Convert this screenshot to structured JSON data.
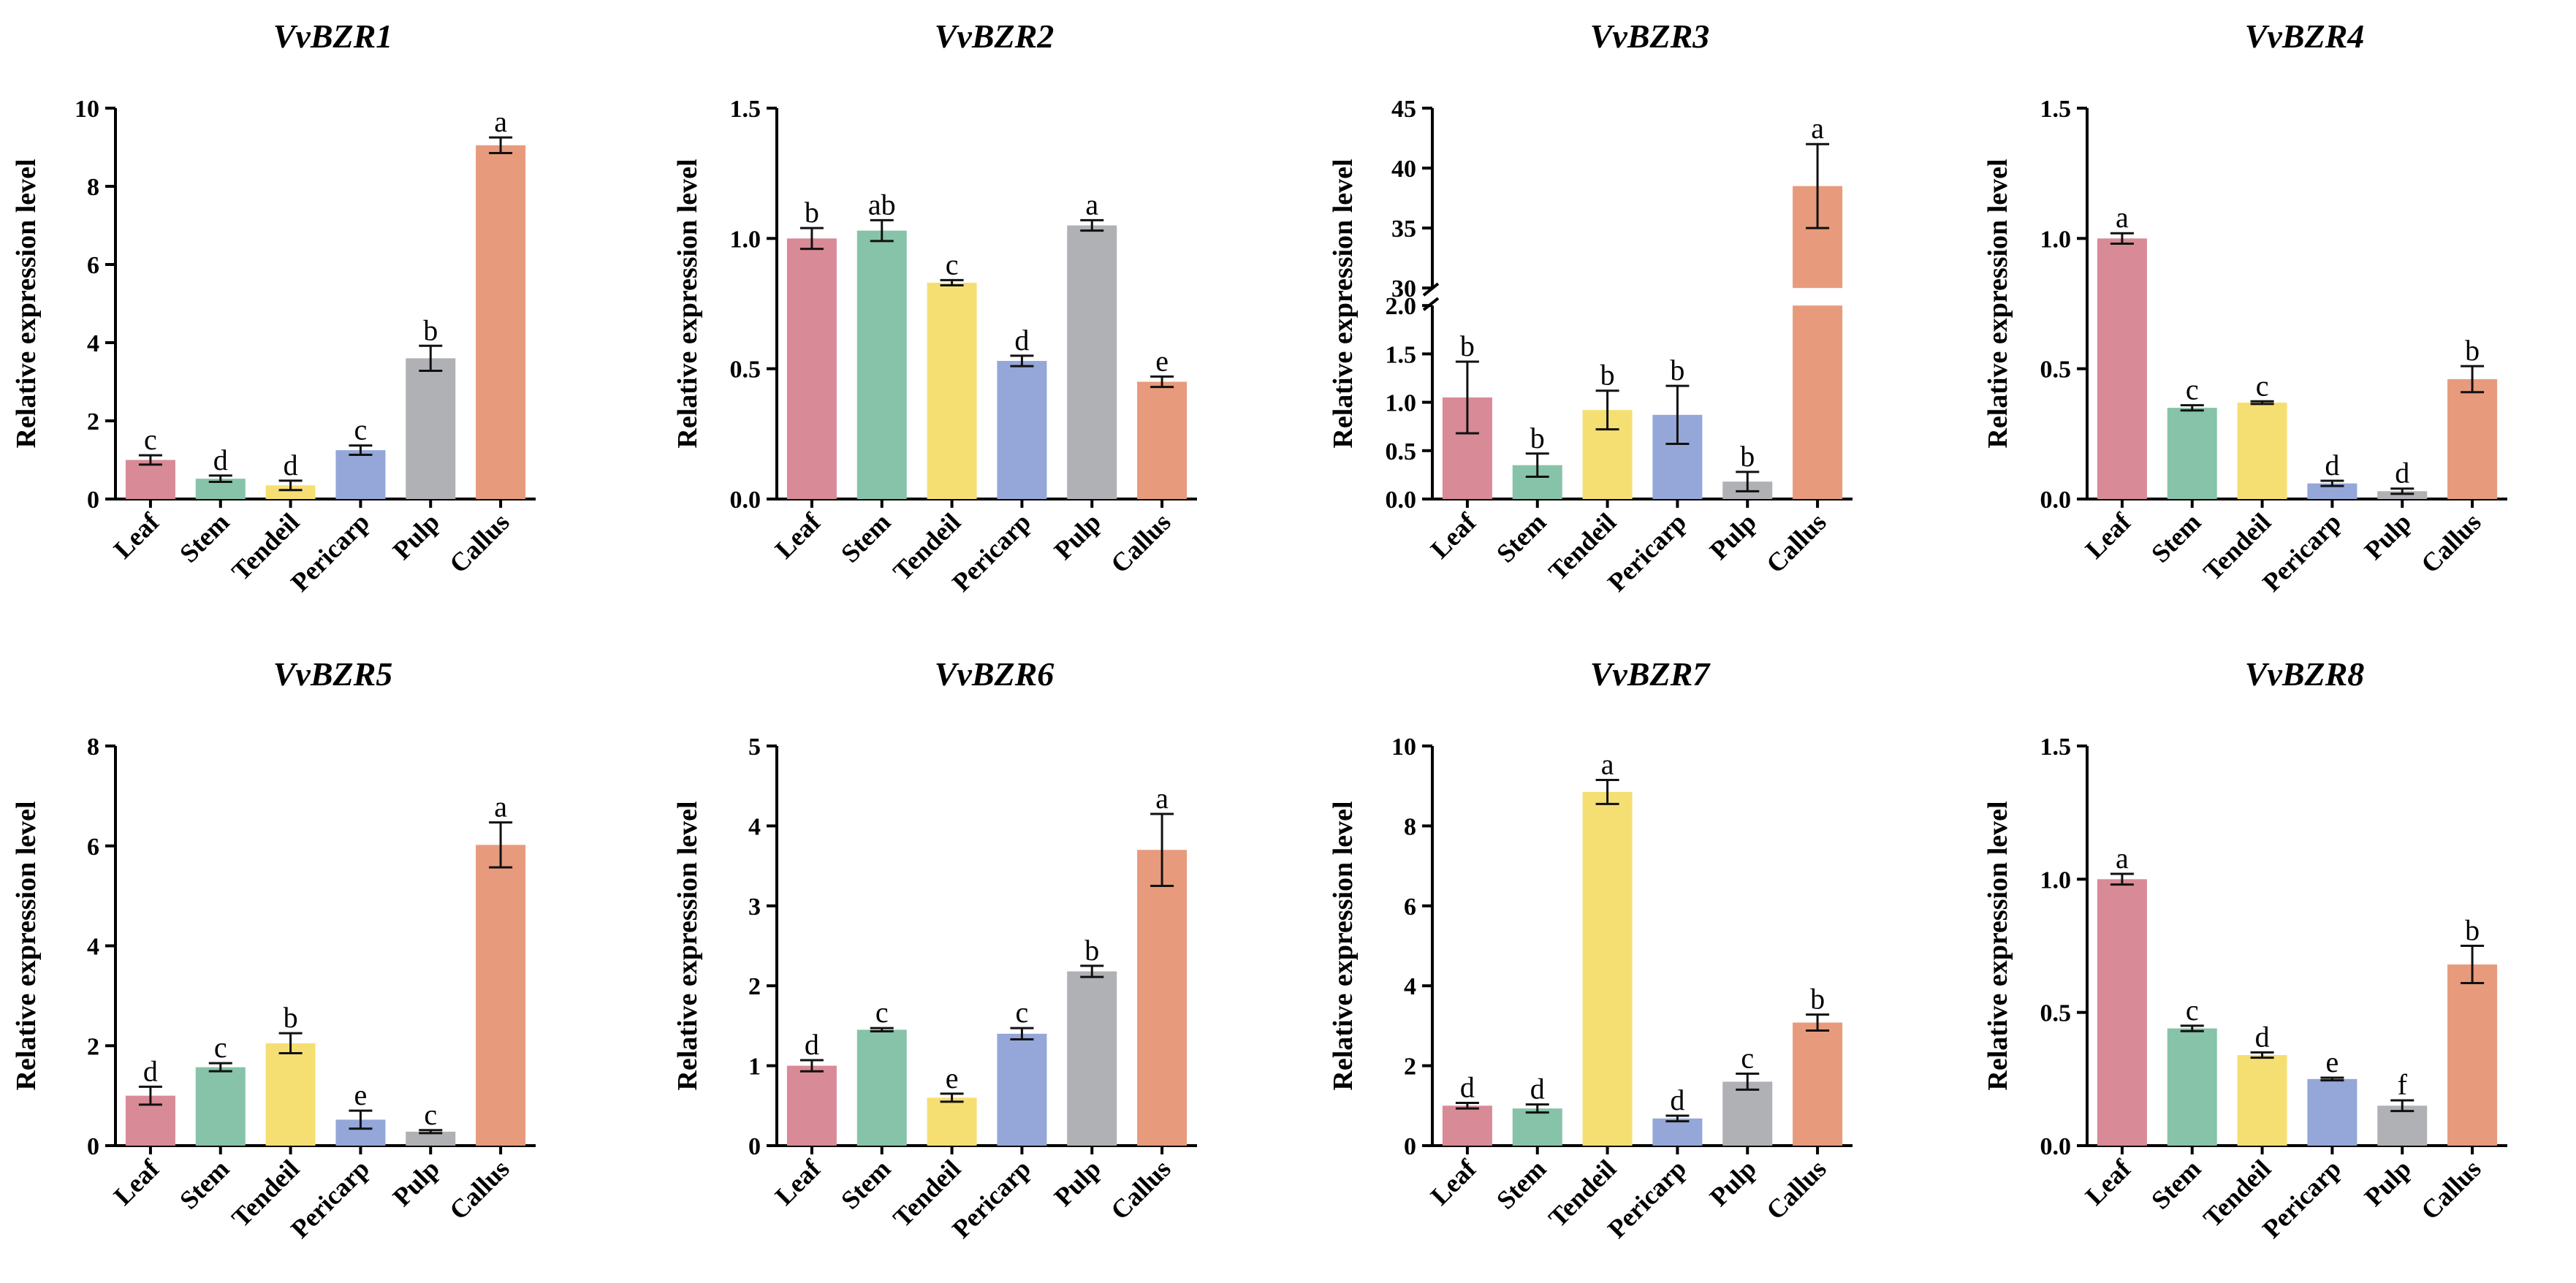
{
  "figure": {
    "categories": [
      "Leaf",
      "Stem",
      "Tendeil",
      "Pericarp",
      "Pulp",
      "Callus"
    ],
    "colors": [
      "#d98a97",
      "#86c3a8",
      "#f6df72",
      "#94a7d8",
      "#b0b1b4",
      "#e79b7c"
    ]
  },
  "chart_data": [
    {
      "type": "bar",
      "title": "VvBZR1",
      "ylabel": "Relative expression level",
      "categories": [
        "Leaf",
        "Stem",
        "Tendeil",
        "Pericarp",
        "Pulp",
        "Callus"
      ],
      "values": [
        1.0,
        0.52,
        0.35,
        1.25,
        3.6,
        9.05
      ],
      "errors": [
        0.12,
        0.08,
        0.12,
        0.12,
        0.32,
        0.2
      ],
      "letters": [
        "c",
        "d",
        "d",
        "c",
        "b",
        "a"
      ],
      "ylim": [
        0,
        10
      ],
      "yticks": [
        0,
        2,
        4,
        6,
        8,
        10
      ],
      "ytick_labels": [
        "0",
        "2",
        "4",
        "6",
        "8",
        "10"
      ]
    },
    {
      "type": "bar",
      "title": "VvBZR2",
      "ylabel": "Relative expression level",
      "categories": [
        "Leaf",
        "Stem",
        "Tendeil",
        "Pericarp",
        "Pulp",
        "Callus"
      ],
      "values": [
        1.0,
        1.03,
        0.83,
        0.53,
        1.05,
        0.45
      ],
      "errors": [
        0.04,
        0.04,
        0.01,
        0.02,
        0.02,
        0.02
      ],
      "letters": [
        "b",
        "ab",
        "c",
        "d",
        "a",
        "e"
      ],
      "ylim": [
        0,
        1.5
      ],
      "yticks": [
        0,
        0.5,
        1.0,
        1.5
      ],
      "ytick_labels": [
        "0.0",
        "0.5",
        "1.0",
        "1.5"
      ]
    },
    {
      "type": "bar",
      "title": "VvBZR3",
      "ylabel": "Relative expression level",
      "categories": [
        "Leaf",
        "Stem",
        "Tendeil",
        "Pericarp",
        "Pulp",
        "Callus"
      ],
      "values": [
        1.05,
        0.35,
        0.92,
        0.87,
        0.18,
        38.5
      ],
      "errors": [
        0.37,
        0.12,
        0.2,
        0.3,
        0.1,
        3.5
      ],
      "letters": [
        "b",
        "b",
        "b",
        "b",
        "b",
        "a"
      ],
      "ylim": [
        0,
        45
      ],
      "axis_break": [
        2.0,
        30
      ],
      "yticks": [
        0,
        0.5,
        1.0,
        1.5,
        2.0,
        30,
        35,
        40,
        45
      ],
      "ytick_labels": [
        "0.0",
        "0.5",
        "1.0",
        "1.5",
        "2.0",
        "30",
        "35",
        "40",
        "45"
      ]
    },
    {
      "type": "bar",
      "title": "VvBZR4",
      "ylabel": "Relative expression level",
      "categories": [
        "Leaf",
        "Stem",
        "Tendeil",
        "Pericarp",
        "Pulp",
        "Callus"
      ],
      "values": [
        1.0,
        0.35,
        0.37,
        0.06,
        0.03,
        0.46
      ],
      "errors": [
        0.02,
        0.01,
        0.005,
        0.01,
        0.01,
        0.05
      ],
      "letters": [
        "a",
        "c",
        "c",
        "d",
        "d",
        "b"
      ],
      "ylim": [
        0,
        1.5
      ],
      "yticks": [
        0,
        0.5,
        1.0,
        1.5
      ],
      "ytick_labels": [
        "0.0",
        "0.5",
        "1.0",
        "1.5"
      ]
    },
    {
      "type": "bar",
      "title": "VvBZR5",
      "ylabel": "Relative expression level",
      "categories": [
        "Leaf",
        "Stem",
        "Tendeil",
        "Pericarp",
        "Pulp",
        "Callus"
      ],
      "values": [
        1.0,
        1.57,
        2.05,
        0.52,
        0.28,
        6.02
      ],
      "errors": [
        0.18,
        0.08,
        0.2,
        0.18,
        0.03,
        0.45
      ],
      "letters": [
        "d",
        "c",
        "b",
        "e",
        "c",
        "a"
      ],
      "ylim": [
        0,
        8
      ],
      "yticks": [
        0,
        2,
        4,
        6,
        8
      ],
      "ytick_labels": [
        "0",
        "2",
        "4",
        "6",
        "8"
      ]
    },
    {
      "type": "bar",
      "title": "VvBZR6",
      "ylabel": "Relative expression level",
      "categories": [
        "Leaf",
        "Stem",
        "Tendeil",
        "Pericarp",
        "Pulp",
        "Callus"
      ],
      "values": [
        1.0,
        1.45,
        0.6,
        1.4,
        2.18,
        3.7
      ],
      "errors": [
        0.07,
        0.02,
        0.05,
        0.07,
        0.07,
        0.45
      ],
      "letters": [
        "d",
        "c",
        "e",
        "c",
        "b",
        "a"
      ],
      "ylim": [
        0,
        5
      ],
      "yticks": [
        0,
        1,
        2,
        3,
        4,
        5
      ],
      "ytick_labels": [
        "0",
        "1",
        "2",
        "3",
        "4",
        "5"
      ]
    },
    {
      "type": "bar",
      "title": "VvBZR7",
      "ylabel": "Relative expression level",
      "categories": [
        "Leaf",
        "Stem",
        "Tendeil",
        "Pericarp",
        "Pulp",
        "Callus"
      ],
      "values": [
        1.0,
        0.93,
        8.85,
        0.68,
        1.6,
        3.08
      ],
      "errors": [
        0.07,
        0.1,
        0.3,
        0.07,
        0.2,
        0.2
      ],
      "letters": [
        "d",
        "d",
        "a",
        "d",
        "c",
        "b"
      ],
      "ylim": [
        0,
        10
      ],
      "yticks": [
        0,
        2,
        4,
        6,
        8,
        10
      ],
      "ytick_labels": [
        "0",
        "2",
        "4",
        "6",
        "8",
        "10"
      ]
    },
    {
      "type": "bar",
      "title": "VvBZR8",
      "ylabel": "Relative expression level",
      "categories": [
        "Leaf",
        "Stem",
        "Tendeil",
        "Pericarp",
        "Pulp",
        "Callus"
      ],
      "values": [
        1.0,
        0.44,
        0.34,
        0.25,
        0.15,
        0.68
      ],
      "errors": [
        0.02,
        0.01,
        0.01,
        0.005,
        0.02,
        0.07
      ],
      "letters": [
        "a",
        "c",
        "d",
        "e",
        "f",
        "b"
      ],
      "ylim": [
        0,
        1.5
      ],
      "yticks": [
        0,
        0.5,
        1.0,
        1.5
      ],
      "ytick_labels": [
        "0.0",
        "0.5",
        "1.0",
        "1.5"
      ]
    }
  ]
}
